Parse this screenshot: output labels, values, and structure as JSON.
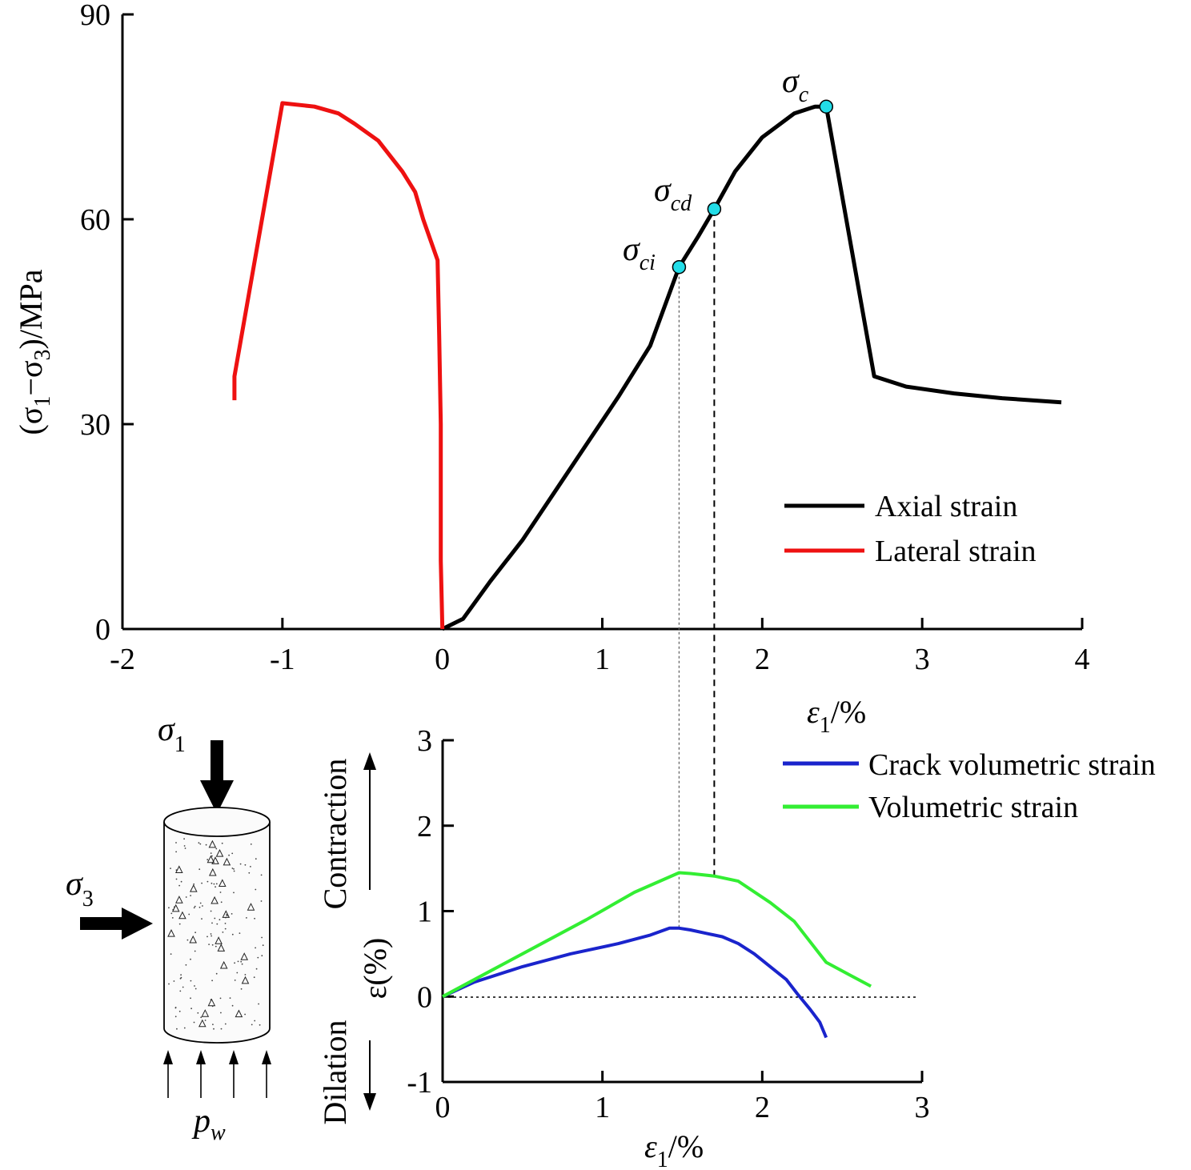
{
  "chart_data": [
    {
      "type": "line",
      "id": "stress-strain",
      "xlabel_main": "ε",
      "xlabel_sub": "1",
      "xlabel_unit": "/%",
      "ylabel": "(σ1−σ3)/MPa",
      "ylabel_parts": {
        "open": "(σ",
        "sub1": "1",
        "dash": "−σ",
        "sub3": "3",
        "close": ")/MPa"
      },
      "xlim": [
        -2,
        4
      ],
      "ylim": [
        0,
        90
      ],
      "xticks": [
        "-2",
        "-1",
        "0",
        "1",
        "2",
        "3",
        "4"
      ],
      "yticks": [
        "0",
        "30",
        "60",
        "90"
      ],
      "legend_position": "right",
      "series": [
        {
          "name": "Axial strain",
          "color": "#000000",
          "x": [
            0,
            0.13,
            0.3,
            0.5,
            0.7,
            0.9,
            1.1,
            1.3,
            1.48,
            1.6,
            1.7,
            1.83,
            2.0,
            2.2,
            2.33,
            2.4,
            2.7,
            2.9,
            3.2,
            3.5,
            3.87
          ],
          "y": [
            0,
            1.5,
            7,
            13,
            20,
            27,
            34,
            41.5,
            53,
            57.5,
            61.5,
            67,
            72,
            75.5,
            76.5,
            76.5,
            37,
            35.5,
            34.5,
            33.8,
            33.2
          ]
        },
        {
          "name": "Lateral strain",
          "color": "#ee1111",
          "x": [
            -1.3,
            -1.3,
            -1.0,
            -0.8,
            -0.65,
            -0.55,
            -0.4,
            -0.25,
            -0.17,
            -0.12,
            -0.03,
            -0.02,
            -0.01,
            -0.01,
            0
          ],
          "y": [
            33.5,
            37,
            77,
            76.5,
            75.5,
            74,
            71.5,
            67,
            64,
            60,
            54,
            43,
            30,
            10,
            0
          ]
        }
      ],
      "annotations": [
        {
          "label": "σ",
          "sub": "ci",
          "x": 1.48,
          "y": 53
        },
        {
          "label": "σ",
          "sub": "cd",
          "x": 1.7,
          "y": 61.5
        },
        {
          "label": "σ",
          "sub": "c",
          "x": 2.4,
          "y": 76.5
        }
      ],
      "marker_color": "#22dde8"
    },
    {
      "type": "line",
      "id": "volumetric",
      "xlabel_main": "ε",
      "xlabel_sub": "1",
      "xlabel_unit": "/%",
      "ylabel": "ε(%)",
      "ylabel_top": "Contraction",
      "ylabel_bottom": "Dilation",
      "xlim": [
        0,
        3
      ],
      "ylim": [
        -1,
        3
      ],
      "xticks": [
        "0",
        "1",
        "2",
        "3"
      ],
      "yticks": [
        "-1",
        "0",
        "1",
        "2",
        "3"
      ],
      "legend_position": "top-right",
      "series": [
        {
          "name": "Crack volumetric strain",
          "color": "#1a24cc",
          "x": [
            0,
            0.2,
            0.5,
            0.8,
            1.1,
            1.3,
            1.42,
            1.48,
            1.55,
            1.65,
            1.75,
            1.85,
            1.95,
            2.05,
            2.15,
            2.22,
            2.3,
            2.36,
            2.4
          ],
          "y": [
            0,
            0.17,
            0.35,
            0.5,
            0.62,
            0.72,
            0.8,
            0.8,
            0.78,
            0.74,
            0.7,
            0.62,
            0.5,
            0.35,
            0.2,
            0.03,
            -0.15,
            -0.3,
            -0.48
          ]
        },
        {
          "name": "Volumetric strain",
          "color": "#33ee33",
          "x": [
            0,
            0.3,
            0.6,
            0.9,
            1.2,
            1.48,
            1.55,
            1.7,
            1.85,
            2.05,
            2.2,
            2.4,
            2.55,
            2.68
          ],
          "y": [
            0,
            0.3,
            0.6,
            0.9,
            1.22,
            1.45,
            1.44,
            1.41,
            1.35,
            1.1,
            0.88,
            0.4,
            0.25,
            0.12
          ]
        }
      ]
    }
  ],
  "diagram": {
    "sigma1": {
      "label": "σ",
      "sub": "1"
    },
    "sigma3": {
      "label": "σ",
      "sub": "3"
    },
    "pw": {
      "label": "p",
      "sub": "w"
    }
  }
}
